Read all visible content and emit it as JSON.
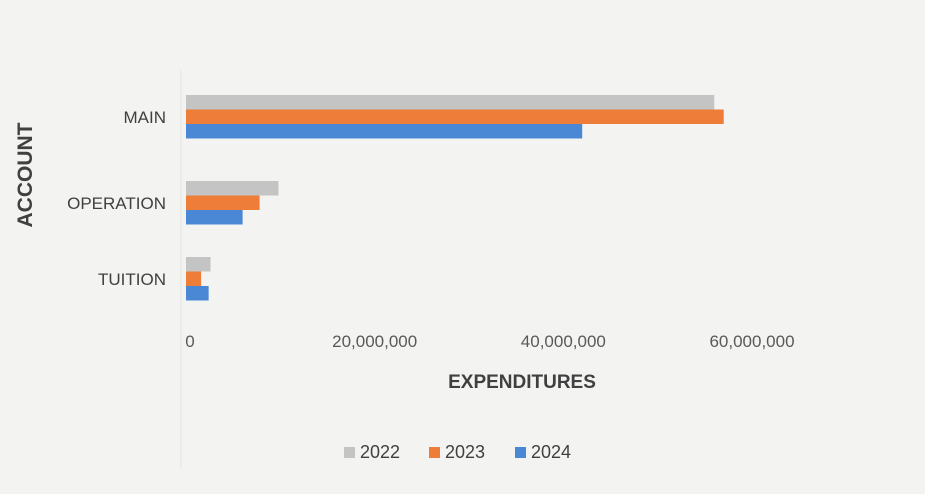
{
  "chart_data": {
    "type": "bar",
    "orientation": "horizontal",
    "categories": [
      "MAIN",
      "OPERATION",
      "TUITION"
    ],
    "series": [
      {
        "name": "2022",
        "color": "#c4c4c4",
        "values": [
          56000000,
          9800000,
          2600000
        ]
      },
      {
        "name": "2023",
        "color": "#ee7d3a",
        "values": [
          57000000,
          7800000,
          1600000
        ]
      },
      {
        "name": "2024",
        "color": "#4a88d6",
        "values": [
          42000000,
          6000000,
          2400000
        ]
      }
    ],
    "x_ticks": [
      0,
      20000000,
      40000000,
      60000000
    ],
    "x_tick_labels": [
      "0",
      "20,000,000",
      "40,000,000",
      "60,000,000"
    ],
    "xlim": [
      0,
      60000000
    ],
    "xlabel": "EXPENDITURES",
    "ylabel": "ACCOUNT",
    "legend_position": "bottom",
    "grid": false
  }
}
